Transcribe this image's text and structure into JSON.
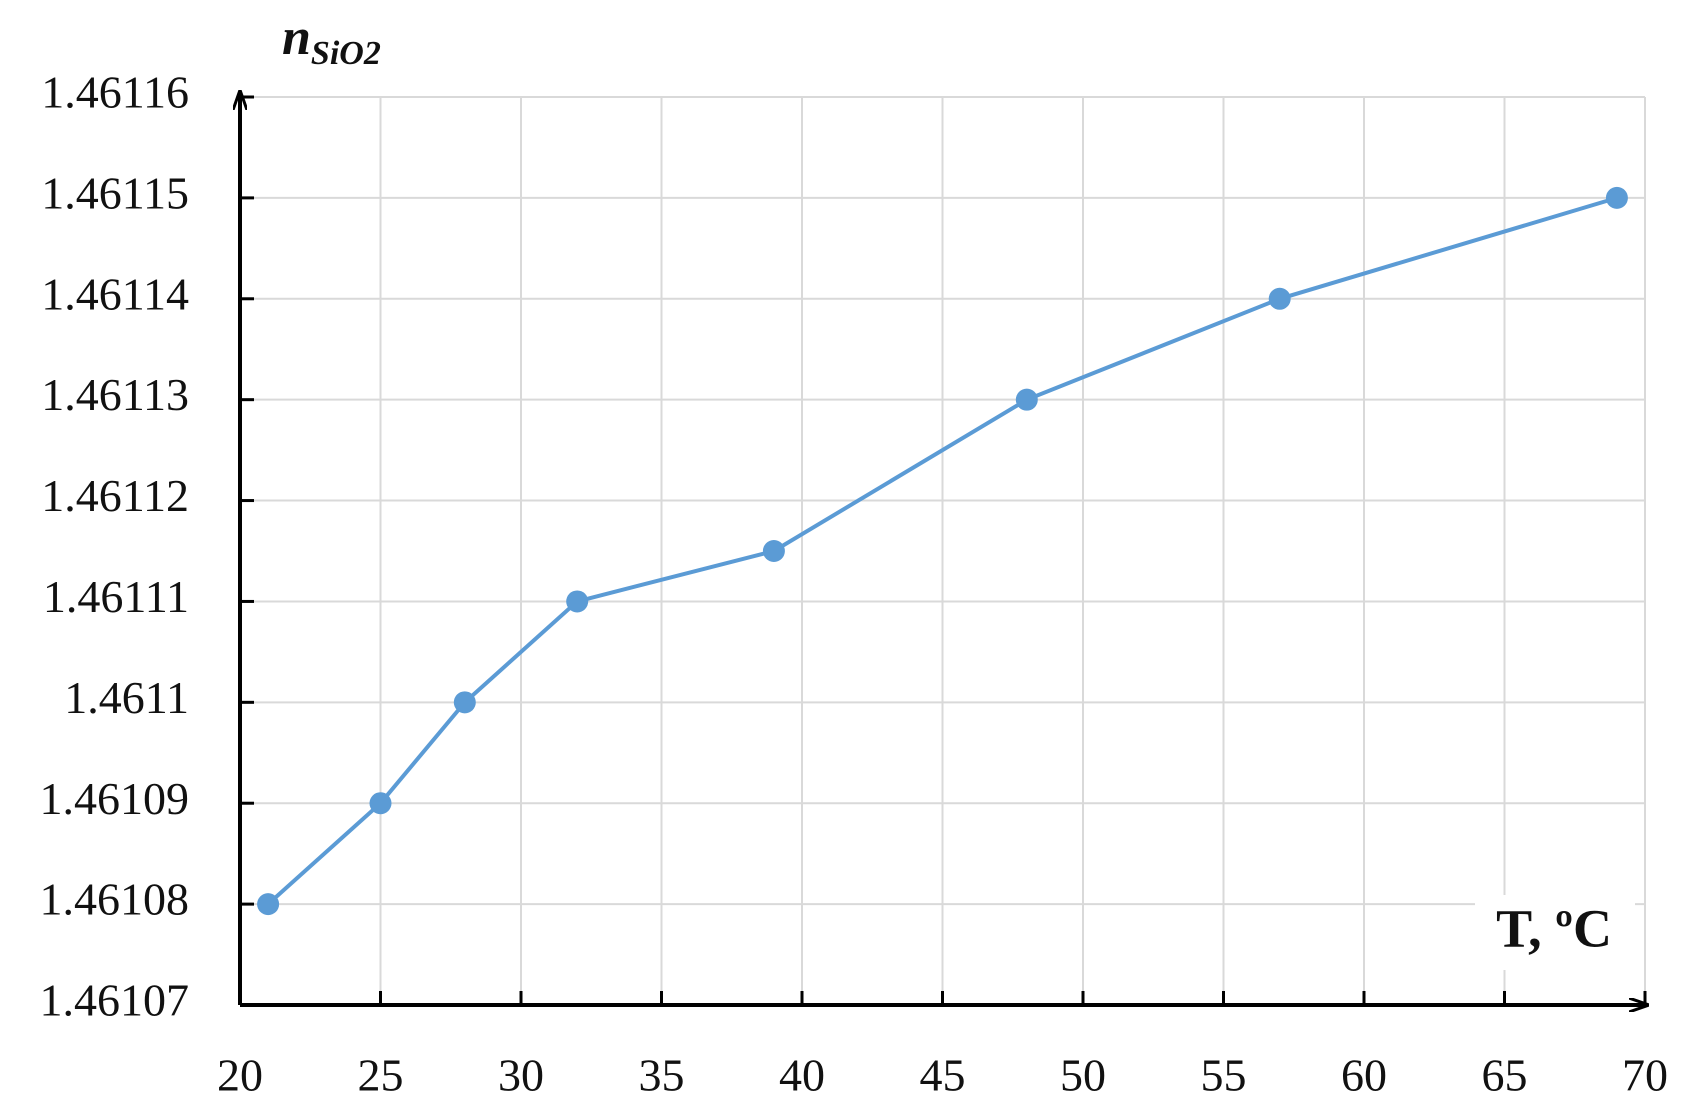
{
  "chart_data": {
    "type": "line",
    "y_label": {
      "main": "n",
      "sub": "SiO2"
    },
    "x_label": "T, ºC",
    "x": [
      21,
      25,
      28,
      32,
      39,
      48,
      57,
      69
    ],
    "series": [
      {
        "color": "#5b9bd5",
        "values": [
          1.46108,
          1.46109,
          1.4611,
          1.46111,
          1.461115,
          1.46113,
          1.46114,
          1.46115
        ]
      }
    ],
    "xlim": [
      20,
      70
    ],
    "xticks": [
      20,
      25,
      30,
      35,
      40,
      45,
      50,
      55,
      60,
      65,
      70
    ],
    "ylim": [
      1.46107,
      1.46116
    ],
    "yticks": [
      1.46107,
      1.46108,
      1.46109,
      1.4611,
      1.46111,
      1.46112,
      1.46113,
      1.46114,
      1.46115,
      1.46116
    ],
    "grid": true
  }
}
